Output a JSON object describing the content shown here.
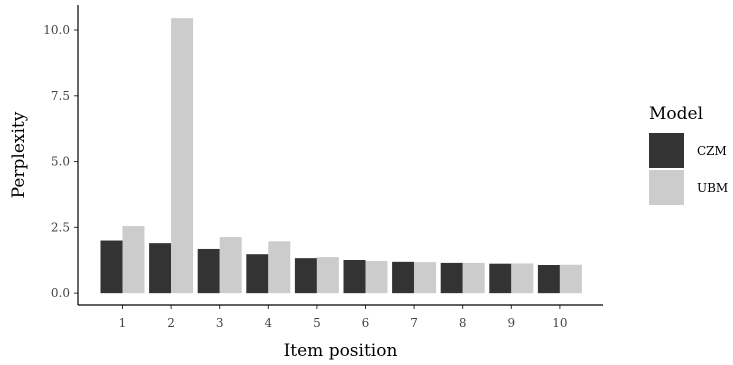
{
  "chart_data": {
    "type": "bar",
    "xlabel": "Item position",
    "ylabel": "Perplexity",
    "categories": [
      "1",
      "2",
      "3",
      "4",
      "5",
      "6",
      "7",
      "8",
      "9",
      "10"
    ],
    "series": [
      {
        "name": "CZM",
        "color": "#333333",
        "values": [
          2.0,
          1.9,
          1.68,
          1.48,
          1.33,
          1.26,
          1.19,
          1.15,
          1.12,
          1.07
        ]
      },
      {
        "name": "UBM",
        "color": "#cccccc",
        "values": [
          2.55,
          10.45,
          2.13,
          1.97,
          1.37,
          1.22,
          1.18,
          1.15,
          1.13,
          1.08
        ]
      }
    ],
    "ylim": [
      -0.45,
      10.95
    ],
    "yticks": [
      "0.0",
      "2.5",
      "5.0",
      "7.5",
      "10.0"
    ],
    "legend": {
      "title": "Model",
      "position": "right"
    },
    "grid": false
  }
}
